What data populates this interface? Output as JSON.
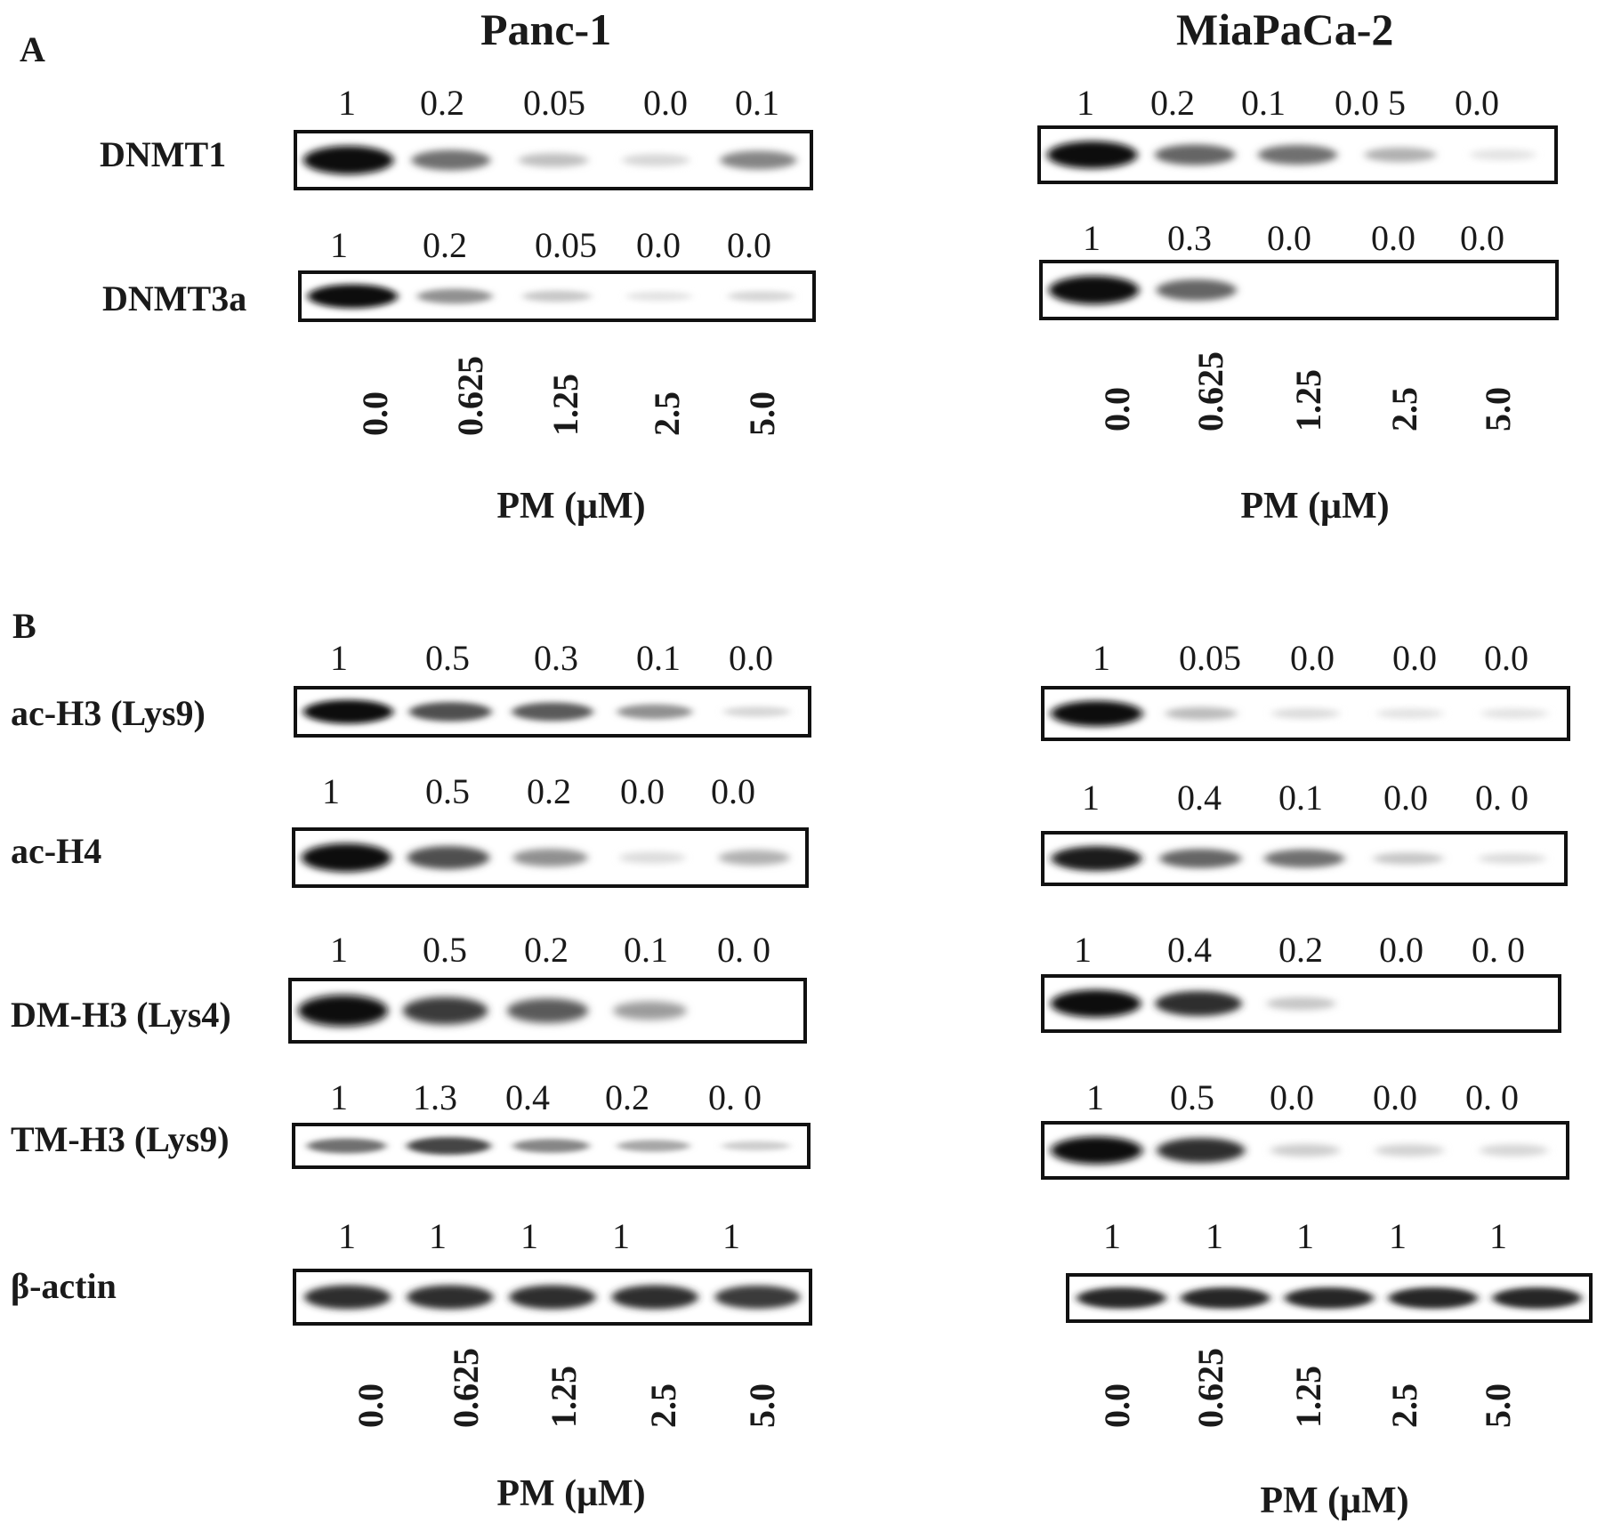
{
  "panels": {
    "a_label": "A",
    "b_label": "B"
  },
  "cell_lines": {
    "left": "Panc-1",
    "right": "MiaPaCa-2"
  },
  "proteins": [
    "DNMT1",
    "DNMT3a",
    "ac-H3 (Lys9)",
    "ac-H4",
    "DM-H3 (Lys4)",
    "TM-H3 (Lys9)",
    "β-actin"
  ],
  "quant_left": {
    "dnmt1": [
      "1",
      "0.2",
      "0.05",
      "0.0",
      "0.1"
    ],
    "dnmt3a": [
      "1",
      "0.2",
      "0.05",
      "0.0",
      "0.0"
    ],
    "acH3": [
      "1",
      "0.5",
      "0.3",
      "0.1",
      "0.0"
    ],
    "acH4": [
      "1",
      "0.5",
      "0.2",
      "0.0",
      "0.0"
    ],
    "dmH3": [
      "1",
      "0.5",
      "0.2",
      "0.1",
      "0. 0"
    ],
    "tmH3": [
      "1",
      "1.3",
      "0.4",
      "0.2",
      "0. 0"
    ],
    "actin": [
      "1",
      "1",
      "1",
      "1",
      "1"
    ]
  },
  "quant_right": {
    "dnmt1": [
      "1",
      "0.2",
      "0.1",
      "0.0 5",
      "0.0"
    ],
    "dnmt3a": [
      "1",
      "0.3",
      "0.0",
      "0.0",
      "0.0"
    ],
    "acH3": [
      "1",
      "0.05",
      "0.0",
      "0.0",
      "0.0"
    ],
    "acH4": [
      "1",
      "0.4",
      "0.1",
      "0.0",
      "0. 0"
    ],
    "dmH3": [
      "1",
      "0.4",
      "0.2",
      "0.0",
      "0. 0"
    ],
    "tmH3": [
      "1",
      "0.5",
      "0.0",
      "0.0",
      "0. 0"
    ],
    "actin": [
      "1",
      "1",
      "1",
      "1",
      "1"
    ]
  },
  "doses": [
    "0.0",
    "0.625",
    "1.25",
    "2.5",
    "5.0"
  ],
  "axis_label": "PM (μM)",
  "band_intensity": {
    "left": {
      "dnmt1": [
        1.0,
        0.55,
        0.18,
        0.08,
        0.45
      ],
      "dnmt3a": [
        1.0,
        0.4,
        0.15,
        0.02,
        0.08
      ],
      "acH3": [
        1.0,
        0.7,
        0.65,
        0.4,
        0.08
      ],
      "acH4": [
        1.0,
        0.7,
        0.4,
        0.05,
        0.25
      ],
      "dmH3": [
        1.0,
        0.8,
        0.65,
        0.35,
        0.0
      ],
      "tmH3": [
        0.55,
        0.75,
        0.45,
        0.3,
        0.12
      ],
      "actin": [
        0.85,
        0.85,
        0.85,
        0.85,
        0.8
      ]
    },
    "right": {
      "dnmt1": [
        1.0,
        0.6,
        0.55,
        0.25,
        0.02
      ],
      "dnmt3a": [
        1.0,
        0.6,
        0.0,
        0.0,
        0.0
      ],
      "acH3": [
        1.0,
        0.2,
        0.05,
        0.02,
        0.02
      ],
      "acH4": [
        0.95,
        0.6,
        0.55,
        0.15,
        0.05
      ],
      "dmH3": [
        1.0,
        0.85,
        0.15,
        0.0,
        0.0
      ],
      "tmH3": [
        1.0,
        0.85,
        0.12,
        0.1,
        0.08
      ],
      "actin": [
        0.9,
        0.9,
        0.9,
        0.9,
        0.9
      ]
    }
  }
}
